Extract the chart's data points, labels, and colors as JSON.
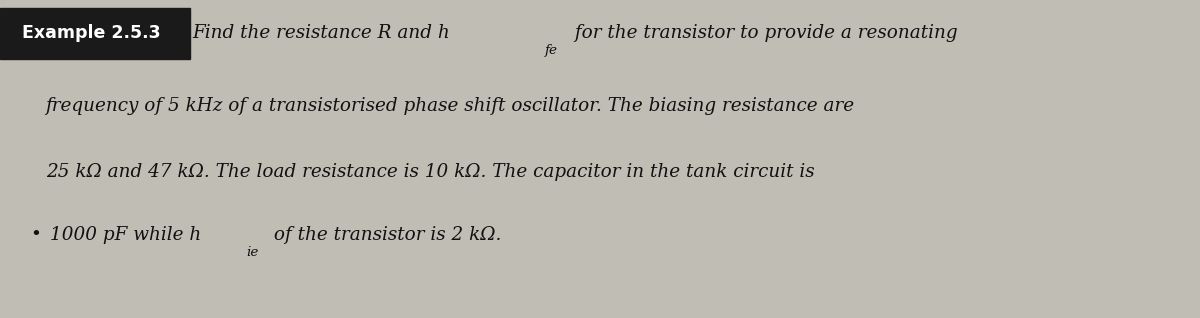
{
  "background_color": "#b8b5aa",
  "page_background": "#c8c5bc",
  "label_box_color": "#1a1a1a",
  "label_text": "Example 2.5.3",
  "label_text_color": "#ffffff",
  "label_fontsize": 12.5,
  "main_text_color": "#111111",
  "main_fontsize": 13.2,
  "line1_part1": "Find the resistance R and h",
  "line1_sub": "fe",
  "line1_part2": " for the transistor to provide a resonating",
  "line2": "frequency of 5 kHz of a transistorised phase shift oscillator. The biasing resistance are",
  "line3": "25 kΩ and 47 kΩ. The load resistance is 10 kΩ. The capacitor in the tank circuit is",
  "line4_part1": "1000 pF while h",
  "line4_sub": "ie",
  "line4_part2": " of the transistor is 2 kΩ.",
  "bullet": "•"
}
